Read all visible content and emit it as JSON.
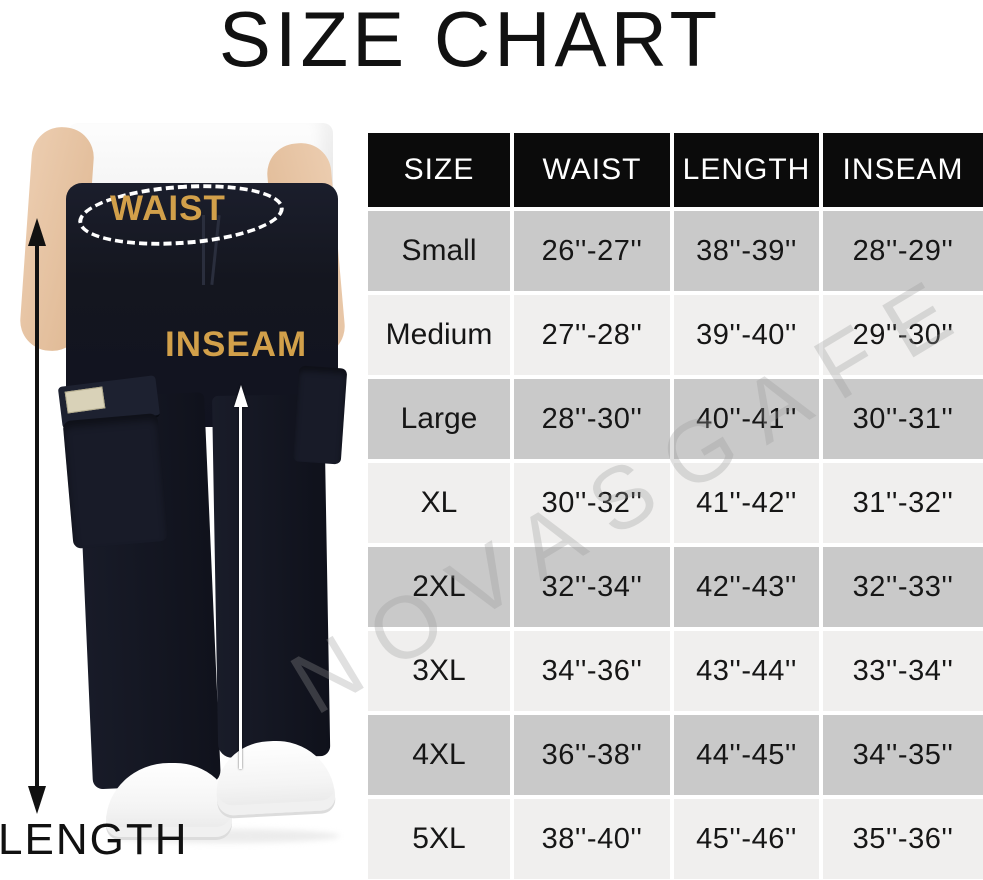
{
  "title": "SIZE CHART",
  "watermark": "NOVASGAFE",
  "figure": {
    "waist_label": "WAIST",
    "inseam_label": "INSEAM",
    "length_label": "LENGTH"
  },
  "colors": {
    "annotation_gold": "#d2a04a",
    "pants_navy": "#14161f",
    "header_bg": "#0b0b0b",
    "row_dark": "#c9c9c9",
    "row_light": "#f0efee"
  },
  "chart_data": {
    "type": "table",
    "title": "SIZE CHART",
    "columns": [
      "SIZE",
      "WAIST",
      "LENGTH",
      "INSEAM"
    ],
    "rows": [
      {
        "size": "Small",
        "waist": "26''-27''",
        "length": "38''-39''",
        "inseam": "28''-29''"
      },
      {
        "size": "Medium",
        "waist": "27''-28''",
        "length": "39''-40''",
        "inseam": "29''-30''"
      },
      {
        "size": "Large",
        "waist": "28''-30''",
        "length": "40''-41''",
        "inseam": "30''-31''"
      },
      {
        "size": "XL",
        "waist": "30''-32''",
        "length": "41''-42''",
        "inseam": "31''-32''"
      },
      {
        "size": "2XL",
        "waist": "32''-34''",
        "length": "42''-43''",
        "inseam": "32''-33''"
      },
      {
        "size": "3XL",
        "waist": "34''-36''",
        "length": "43''-44''",
        "inseam": "33''-34''"
      },
      {
        "size": "4XL",
        "waist": "36''-38''",
        "length": "44''-45''",
        "inseam": "34''-35''"
      },
      {
        "size": "5XL",
        "waist": "38''-40''",
        "length": "45''-46''",
        "inseam": "35''-36''"
      }
    ]
  }
}
